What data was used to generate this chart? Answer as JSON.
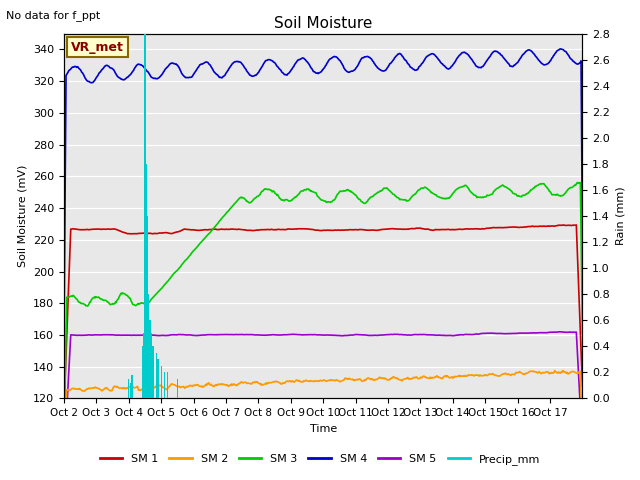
{
  "title": "Soil Moisture",
  "top_left_text": "No data for f_ppt",
  "annotation_text": "VR_met",
  "xlabel": "Time",
  "ylabel_left": "Soil Moisture (mV)",
  "ylabel_right": "Rain (mm)",
  "ylim_left": [
    120,
    350
  ],
  "ylim_right": [
    0.0,
    2.8
  ],
  "yticks_left": [
    120,
    140,
    160,
    180,
    200,
    220,
    240,
    260,
    280,
    300,
    320,
    340
  ],
  "yticks_right_vals": [
    0.0,
    0.2,
    0.4,
    0.6,
    0.8,
    1.0,
    1.2,
    1.4,
    1.6,
    1.8,
    2.0,
    2.2,
    2.4,
    2.6,
    2.8
  ],
  "n_days": 16,
  "xtick_labels": [
    "Oct 2",
    "Oct 3",
    "Oct 4",
    "Oct 5",
    "Oct 6",
    "Oct 7",
    "Oct 8",
    "Oct 9",
    "Oct 10",
    "Oct 11",
    "Oct 12",
    "Oct 13",
    "Oct 14",
    "Oct 15",
    "Oct 16",
    "Oct 17"
  ],
  "sm1_color": "#cc0000",
  "sm2_color": "#ff9900",
  "sm3_color": "#00cc00",
  "sm4_color": "#0000cc",
  "sm5_color": "#9900cc",
  "precip_color": "#00cccc",
  "vline_color": "#00cccc",
  "background_color": "#e8e8e8",
  "grid_color": "#ffffff",
  "title_fontsize": 11,
  "label_fontsize": 8,
  "tick_fontsize": 8,
  "legend_fontsize": 8,
  "annot_fontsize": 9,
  "annot_color": "#880000",
  "annot_bg": "#ffffcc",
  "annot_edge": "#886600"
}
